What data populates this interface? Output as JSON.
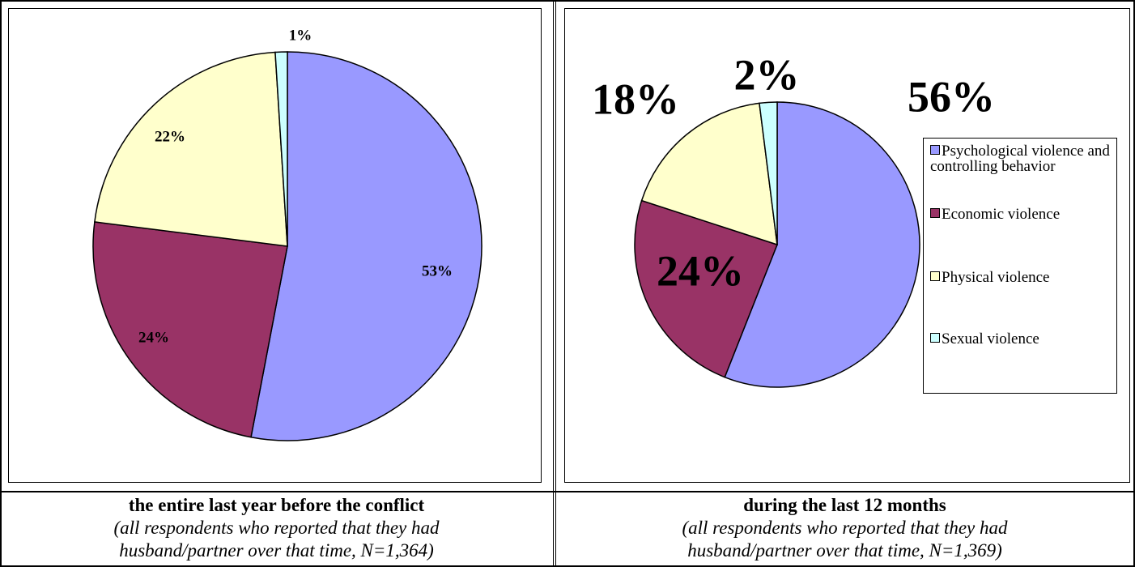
{
  "chart_data": [
    {
      "type": "pie",
      "values": [
        53,
        24,
        22,
        1
      ],
      "value_labels": [
        "53%",
        "24%",
        "22%",
        "1%"
      ],
      "colors": [
        "#9999ff",
        "#993366",
        "#ffffcc",
        "#ccffff"
      ],
      "title": "the entire last year before the conflict",
      "subtitle": "(all respondents who reported that they had husband/partner over that time, N=1,364)"
    },
    {
      "type": "pie",
      "categories": [
        "Psychological violence and controlling behavior",
        "Economic violence",
        "Physical violence",
        "Sexual violence"
      ],
      "values": [
        56,
        24,
        18,
        2
      ],
      "value_labels": [
        "56%",
        "24%",
        "18%",
        "2%"
      ],
      "colors": [
        "#9999ff",
        "#993366",
        "#ffffcc",
        "#ccffff"
      ],
      "legend": "right",
      "title": "during the last 12 months",
      "subtitle": "(all respondents who reported that they had husband/partner over that time, N=1,369)"
    }
  ]
}
